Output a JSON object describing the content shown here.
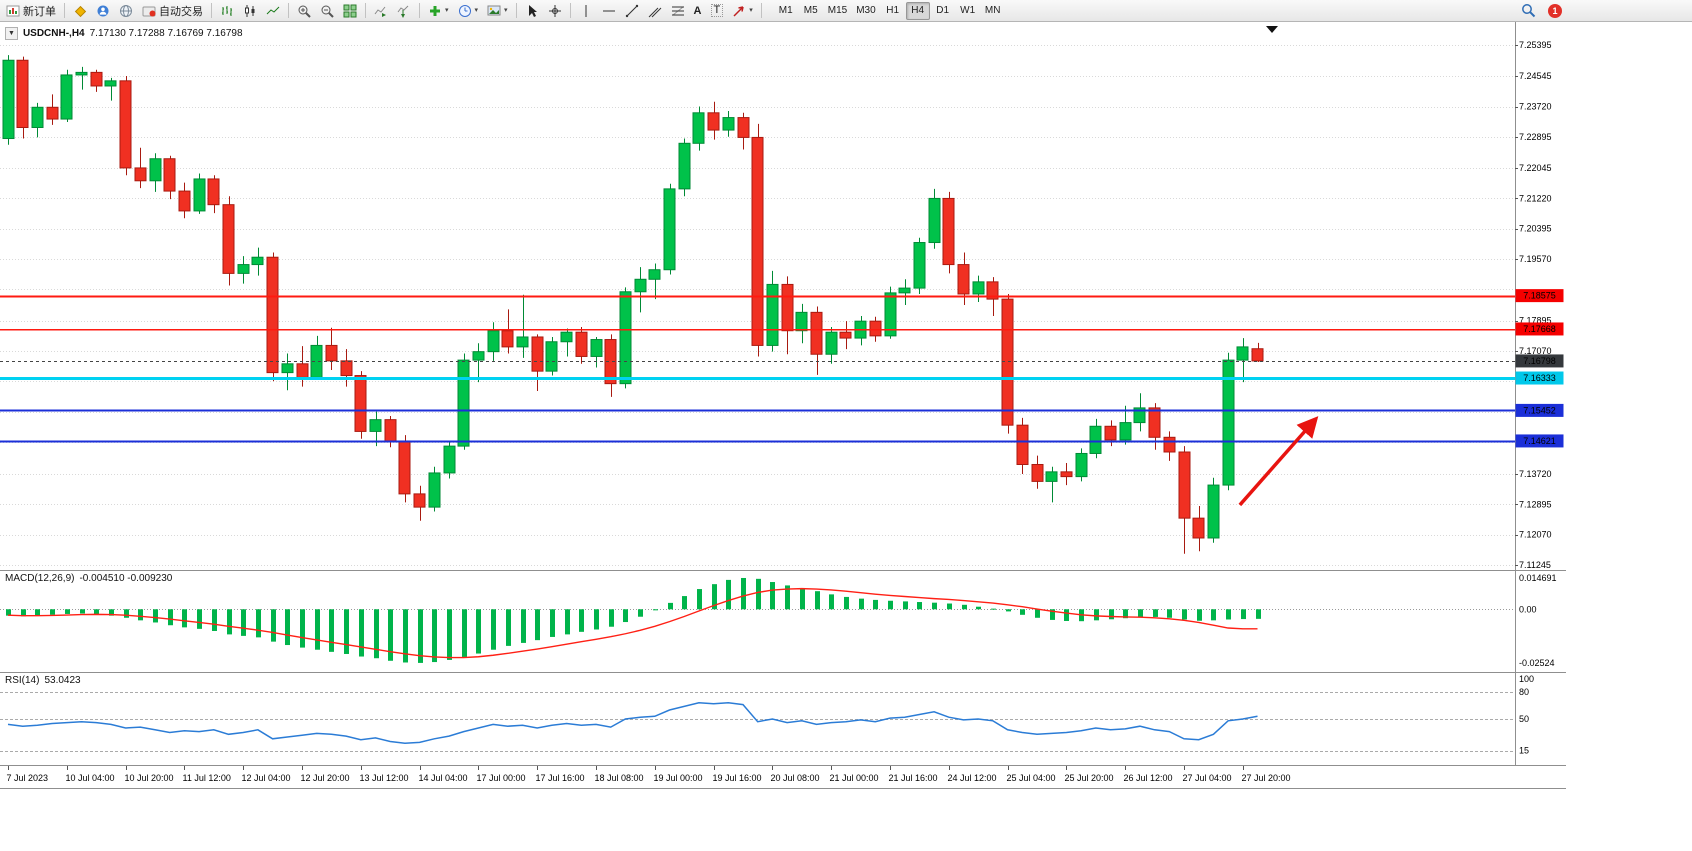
{
  "toolbar": {
    "new_order_label": "新订单",
    "autotrading_label": "自动交易",
    "timeframes": [
      "M1",
      "M5",
      "M15",
      "M30",
      "H1",
      "H4",
      "D1",
      "W1",
      "MN"
    ],
    "active_timeframe": "H4",
    "notification_count": "1",
    "glyphs": {
      "caret": "▾",
      "dropdown": "▼",
      "text_tool": "A",
      "label_tool": "T"
    }
  },
  "chart": {
    "title": "USDCNH-,H4",
    "ohlc": "7.17130 7.17288 7.16769 7.16798",
    "price_axis_labels": [
      "7.25395",
      "7.24545",
      "7.23720",
      "7.22895",
      "7.22045",
      "7.21220",
      "7.20395",
      "7.19570",
      "7.17895",
      "7.17070",
      "7.13720",
      "7.12895",
      "7.12070",
      "7.11245"
    ],
    "price_badges": [
      {
        "text": "7.18575",
        "color": "#f50000"
      },
      {
        "text": "7.17668",
        "color": "#f50000"
      },
      {
        "text": "7.16798",
        "color": "#34383c"
      },
      {
        "text": "7.16333",
        "color": "#00c8ea"
      },
      {
        "text": "7.15452",
        "color": "#1b2fd8"
      },
      {
        "text": "7.14621",
        "color": "#1b2fd8"
      }
    ],
    "hlines": [
      {
        "price": 7.18575,
        "color": "#ff1a10",
        "width": 2
      },
      {
        "price": 7.17668,
        "color": "#ff1a10",
        "width": 1.5
      },
      {
        "price": 7.16798,
        "color": "#444444",
        "width": 1,
        "dash": "3,3"
      },
      {
        "price": 7.16333,
        "color": "#00d2f2",
        "width": 3
      },
      {
        "price": 7.15452,
        "color": "#1b2fd8",
        "width": 2
      },
      {
        "price": 7.14621,
        "color": "#1b2fd8",
        "width": 2
      }
    ],
    "time_labels": [
      "7 Jul 2023",
      "10 Jul 04:00",
      "10 Jul 20:00",
      "11 Jul 12:00",
      "12 Jul 04:00",
      "12 Jul 20:00",
      "13 Jul 12:00",
      "14 Jul 04:00",
      "17 Jul 00:00",
      "17 Jul 16:00",
      "18 Jul 08:00",
      "19 Jul 00:00",
      "19 Jul 16:00",
      "20 Jul 08:00",
      "21 Jul 00:00",
      "21 Jul 16:00",
      "24 Jul 12:00",
      "25 Jul 04:00",
      "25 Jul 20:00",
      "26 Jul 12:00",
      "27 Jul 04:00",
      "27 Jul 20:00"
    ]
  },
  "indicators": {
    "macd": {
      "name": "MACD(12,26,9)",
      "values": "-0.004510 -0.009230",
      "axis_labels": [
        "0.014691",
        "0.00",
        "-0.02524"
      ]
    },
    "rsi": {
      "name": "RSI(14)",
      "value": "53.0423",
      "axis_labels": [
        "100",
        "80",
        "50",
        "15"
      ],
      "levels": [
        80,
        50,
        15
      ]
    }
  },
  "colors": {
    "bull": "#00c24a",
    "bull_edge": "#008a35",
    "bear": "#f03022",
    "bear_edge": "#a81a10",
    "grid": "#d9d9d9",
    "frame": "#8f8f8f",
    "macd_histogram": "#00b44a",
    "macd_signal": "#ff2015",
    "rsi": "#2b7cd6",
    "arrow": "#e81410"
  },
  "chart_data": {
    "type": "candlestick",
    "symbol": "USDCNH-",
    "timeframe": "H4",
    "current": {
      "open": 7.1713,
      "high": 7.17288,
      "low": 7.16769,
      "close": 7.16798
    },
    "price_scale": {
      "max": 7.25395,
      "min": 7.11245
    },
    "price_gridlines": [
      7.25395,
      7.24545,
      7.2372,
      7.22895,
      7.22045,
      7.2122,
      7.20395,
      7.1957,
      7.18745,
      7.17895,
      7.1707,
      7.16245,
      7.1542,
      7.14595,
      7.1372,
      7.12895,
      7.1207,
      7.11245
    ],
    "candles": [
      [
        7.2285,
        7.2512,
        7.2268,
        7.2498
      ],
      [
        7.2498,
        7.2508,
        7.2285,
        7.2315
      ],
      [
        7.2315,
        7.2382,
        7.2288,
        7.237
      ],
      [
        7.237,
        7.2405,
        7.2322,
        7.2338
      ],
      [
        7.2338,
        7.2472,
        7.233,
        7.2458
      ],
      [
        7.2458,
        7.248,
        7.2418,
        7.2465
      ],
      [
        7.2465,
        7.2472,
        7.2412,
        7.2428
      ],
      [
        7.2428,
        7.245,
        7.2388,
        7.2442
      ],
      [
        7.2442,
        7.2455,
        7.2185,
        7.2205
      ],
      [
        7.2205,
        7.226,
        7.215,
        7.217
      ],
      [
        7.217,
        7.2245,
        7.214,
        7.223
      ],
      [
        7.223,
        7.2238,
        7.212,
        7.2142
      ],
      [
        7.2142,
        7.2165,
        7.2068,
        7.2088
      ],
      [
        7.2088,
        7.219,
        7.208,
        7.2175
      ],
      [
        7.2175,
        7.2185,
        7.2082,
        7.2105
      ],
      [
        7.2105,
        7.2128,
        7.1885,
        7.1918
      ],
      [
        7.1918,
        7.1965,
        7.189,
        7.1942
      ],
      [
        7.1942,
        7.1988,
        7.1912,
        7.1962
      ],
      [
        7.1962,
        7.1975,
        7.1625,
        7.1648
      ],
      [
        7.1648,
        7.17,
        7.16,
        7.1672
      ],
      [
        7.1672,
        7.172,
        7.161,
        7.1635
      ],
      [
        7.1635,
        7.1748,
        7.1628,
        7.1722
      ],
      [
        7.1722,
        7.177,
        7.1655,
        7.168
      ],
      [
        7.168,
        7.1712,
        7.161,
        7.164
      ],
      [
        7.164,
        7.1652,
        7.1468,
        7.1488
      ],
      [
        7.1488,
        7.1542,
        7.1448,
        7.152
      ],
      [
        7.152,
        7.153,
        7.1445,
        7.1462
      ],
      [
        7.1462,
        7.1478,
        7.1295,
        7.1318
      ],
      [
        7.1318,
        7.134,
        7.1245,
        7.1282
      ],
      [
        7.1282,
        7.1392,
        7.127,
        7.1375
      ],
      [
        7.1375,
        7.146,
        7.136,
        7.1448
      ],
      [
        7.1448,
        7.17,
        7.1438,
        7.1682
      ],
      [
        7.1682,
        7.1728,
        7.1622,
        7.1705
      ],
      [
        7.1705,
        7.1785,
        7.168,
        7.1762
      ],
      [
        7.1762,
        7.182,
        7.17,
        7.1718
      ],
      [
        7.1718,
        7.186,
        7.1688,
        7.1745
      ],
      [
        7.1745,
        7.1752,
        7.1598,
        7.1652
      ],
      [
        7.1652,
        7.1745,
        7.164,
        7.1732
      ],
      [
        7.1732,
        7.1768,
        7.1692,
        7.1758
      ],
      [
        7.1758,
        7.1772,
        7.1672,
        7.1692
      ],
      [
        7.1692,
        7.1745,
        7.1662,
        7.1738
      ],
      [
        7.1738,
        7.1752,
        7.1582,
        7.1618
      ],
      [
        7.1618,
        7.188,
        7.1605,
        7.1868
      ],
      [
        7.1868,
        7.1935,
        7.1812,
        7.1902
      ],
      [
        7.1902,
        7.1945,
        7.1848,
        7.1928
      ],
      [
        7.1928,
        7.2162,
        7.1915,
        7.2148
      ],
      [
        7.2148,
        7.2285,
        7.2128,
        7.2272
      ],
      [
        7.2272,
        7.2372,
        7.2252,
        7.2355
      ],
      [
        7.2355,
        7.2385,
        7.2282,
        7.2308
      ],
      [
        7.2308,
        7.236,
        7.229,
        7.2342
      ],
      [
        7.2342,
        7.2355,
        7.2255,
        7.2288
      ],
      [
        7.2288,
        7.2325,
        7.1692,
        7.1722
      ],
      [
        7.1722,
        7.1925,
        7.1705,
        7.1888
      ],
      [
        7.1888,
        7.191,
        7.1698,
        7.1762
      ],
      [
        7.1762,
        7.1835,
        7.1728,
        7.1812
      ],
      [
        7.1812,
        7.1828,
        7.1642,
        7.1698
      ],
      [
        7.1698,
        7.1772,
        7.1672,
        7.1758
      ],
      [
        7.1758,
        7.1788,
        7.1712,
        7.1742
      ],
      [
        7.1742,
        7.1802,
        7.1722,
        7.1788
      ],
      [
        7.1788,
        7.18,
        7.1732,
        7.1748
      ],
      [
        7.1748,
        7.1882,
        7.174,
        7.1865
      ],
      [
        7.1865,
        7.1902,
        7.1832,
        7.1878
      ],
      [
        7.1878,
        7.2015,
        7.1862,
        7.2002
      ],
      [
        7.2002,
        7.2148,
        7.1985,
        7.2122
      ],
      [
        7.2122,
        7.214,
        7.1918,
        7.1942
      ],
      [
        7.1942,
        7.1975,
        7.1832,
        7.1862
      ],
      [
        7.1862,
        7.1912,
        7.184,
        7.1895
      ],
      [
        7.1895,
        7.1908,
        7.1802,
        7.1848
      ],
      [
        7.1848,
        7.1862,
        7.1482,
        7.1505
      ],
      [
        7.1505,
        7.1525,
        7.1372,
        7.1398
      ],
      [
        7.1398,
        7.1422,
        7.1332,
        7.1352
      ],
      [
        7.1352,
        7.1392,
        7.1295,
        7.1378
      ],
      [
        7.1378,
        7.1402,
        7.1342,
        7.1365
      ],
      [
        7.1365,
        7.1442,
        7.1352,
        7.1428
      ],
      [
        7.1428,
        7.1522,
        7.1415,
        7.1502
      ],
      [
        7.1502,
        7.1518,
        7.1448,
        7.1465
      ],
      [
        7.1465,
        7.1558,
        7.1452,
        7.1512
      ],
      [
        7.1512,
        7.1592,
        7.1488,
        7.1552
      ],
      [
        7.1552,
        7.1565,
        7.1438,
        7.1472
      ],
      [
        7.1472,
        7.1488,
        7.1408,
        7.1432
      ],
      [
        7.1432,
        7.1448,
        7.1155,
        7.1252
      ],
      [
        7.1252,
        7.1285,
        7.1162,
        7.1198
      ],
      [
        7.1198,
        7.1362,
        7.1185,
        7.1342
      ],
      [
        7.1342,
        7.1702,
        7.1328,
        7.1682
      ],
      [
        7.1682,
        7.1742,
        7.1622,
        7.1718
      ],
      [
        7.1713,
        7.17288,
        7.16769,
        7.16798
      ]
    ],
    "macd": {
      "scale": {
        "max": 0.014691,
        "min": -0.02524
      },
      "current": {
        "macd": -0.00451,
        "signal": -0.00923
      },
      "histogram": [
        -0.003,
        -0.0033,
        -0.003,
        -0.0026,
        -0.0022,
        -0.002,
        -0.0024,
        -0.003,
        -0.004,
        -0.0052,
        -0.0062,
        -0.0075,
        -0.0085,
        -0.0092,
        -0.0102,
        -0.0118,
        -0.0125,
        -0.0132,
        -0.0152,
        -0.0168,
        -0.018,
        -0.019,
        -0.02,
        -0.021,
        -0.0222,
        -0.023,
        -0.0242,
        -0.025,
        -0.0252,
        -0.0248,
        -0.0238,
        -0.0224,
        -0.0208,
        -0.019,
        -0.0172,
        -0.0158,
        -0.0145,
        -0.013,
        -0.0118,
        -0.0106,
        -0.0095,
        -0.0082,
        -0.006,
        -0.0035,
        -0.0005,
        0.003,
        0.0062,
        0.0095,
        0.0118,
        0.0138,
        0.0147,
        0.0143,
        0.0128,
        0.0112,
        0.0098,
        0.0085,
        0.007,
        0.0058,
        0.005,
        0.0044,
        0.004,
        0.0037,
        0.0034,
        0.0031,
        0.0027,
        0.0021,
        0.0012,
        0.0003,
        -0.001,
        -0.0026,
        -0.004,
        -0.005,
        -0.0055,
        -0.0056,
        -0.0052,
        -0.0047,
        -0.0042,
        -0.0037,
        -0.0036,
        -0.004,
        -0.0048,
        -0.0054,
        -0.0052,
        -0.0048,
        -0.0046,
        -0.0045
      ],
      "signal": [
        -0.0028,
        -0.003,
        -0.003,
        -0.0029,
        -0.0027,
        -0.0025,
        -0.0024,
        -0.0025,
        -0.0028,
        -0.0033,
        -0.0039,
        -0.0046,
        -0.0054,
        -0.0062,
        -0.007,
        -0.008,
        -0.0089,
        -0.0098,
        -0.0109,
        -0.0121,
        -0.0133,
        -0.0144,
        -0.0155,
        -0.0166,
        -0.0177,
        -0.0188,
        -0.0199,
        -0.0209,
        -0.0218,
        -0.0224,
        -0.0227,
        -0.0227,
        -0.0223,
        -0.0216,
        -0.0207,
        -0.0197,
        -0.0187,
        -0.0176,
        -0.0164,
        -0.0152,
        -0.0141,
        -0.0129,
        -0.0115,
        -0.0099,
        -0.008,
        -0.0058,
        -0.0034,
        -0.0008,
        0.0017,
        0.0041,
        0.0062,
        0.0079,
        0.009,
        0.0095,
        0.0097,
        0.0095,
        0.0091,
        0.0085,
        0.0078,
        0.0071,
        0.0065,
        0.006,
        0.0055,
        0.005,
        0.0046,
        0.0041,
        0.0035,
        0.0029,
        0.0021,
        0.0012,
        0.0001,
        -0.0009,
        -0.0018,
        -0.0026,
        -0.0031,
        -0.0034,
        -0.0036,
        -0.0037,
        -0.004,
        -0.0045,
        -0.0052,
        -0.0062,
        -0.0075,
        -0.0088,
        -0.0092,
        -0.0092
      ]
    },
    "rsi": {
      "period": 14,
      "current": 53.0423,
      "series": [
        44,
        42,
        43,
        45,
        46,
        47,
        46,
        44,
        40,
        41,
        38,
        35,
        37,
        36,
        38,
        33,
        35,
        38,
        28,
        30,
        32,
        34,
        33,
        31,
        27,
        29,
        25,
        23,
        24,
        28,
        31,
        36,
        40,
        44,
        42,
        43,
        40,
        43,
        45,
        43,
        44,
        41,
        50,
        52,
        53,
        60,
        64,
        68,
        67,
        68,
        66,
        47,
        50,
        46,
        48,
        44,
        46,
        47,
        49,
        47,
        51,
        52,
        55,
        58,
        52,
        49,
        50,
        48,
        38,
        35,
        33,
        34,
        35,
        37,
        40,
        38,
        39,
        42,
        38,
        36,
        28,
        27,
        33,
        48,
        50,
        53
      ]
    },
    "annotations": [
      {
        "type": "arrow",
        "from": {
          "index": 83.8,
          "price": 7.1288
        },
        "to": {
          "index": 88.9,
          "price": 7.1519
        },
        "color": "#e81410",
        "width": 3.5
      }
    ]
  }
}
